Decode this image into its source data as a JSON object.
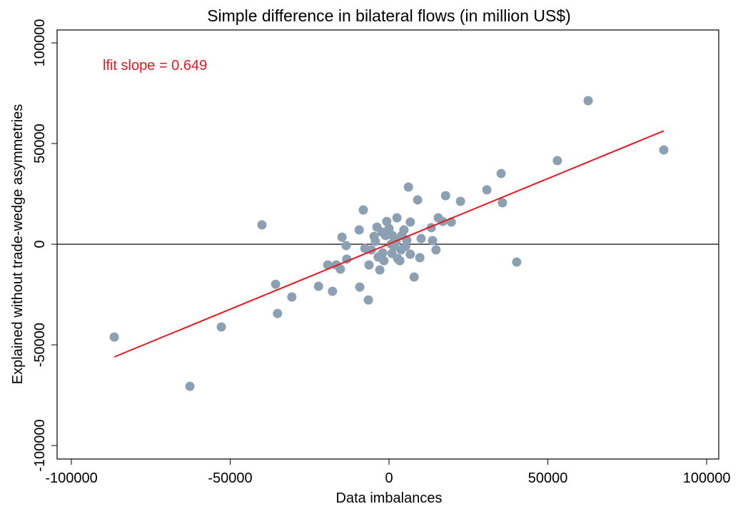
{
  "chart_data": {
    "type": "scatter",
    "title": "Simple difference in bilateral flows (in million US$)",
    "x_label": "Data imbalances",
    "y_label": "Explained without trade-wedge asymmetries",
    "annotation": "lfit slope = 0.649",
    "xlim": [
      -104500,
      103800
    ],
    "ylim": [
      -106700,
      106400
    ],
    "xticks": [
      -100000,
      -50000,
      0,
      50000,
      100000
    ],
    "yticks": [
      -100000,
      -50000,
      0,
      50000,
      100000
    ],
    "reference_line_y": 0,
    "fit_line": {
      "color": "#e8171f",
      "x": [
        -86500,
        86500
      ],
      "y": [
        -56000,
        56300
      ]
    },
    "series": [
      {
        "color": "#8ca0b3",
        "x": [
          -86500,
          -62700,
          -52800,
          -40000,
          -35700,
          -35100,
          -30600,
          -22200,
          -19300,
          -17800,
          -16600,
          -15300,
          -14800,
          -13500,
          -13300,
          -9400,
          -9200,
          -8100,
          -7600,
          -6500,
          -6300,
          -4700,
          -3800,
          -2900,
          -2000,
          -1100,
          0,
          700,
          1600,
          2500,
          3400,
          4700,
          6100,
          6700,
          6700,
          7900,
          9000,
          9700,
          10100,
          13300,
          13700,
          14800,
          15500,
          16900,
          17800,
          19600,
          22500,
          30800,
          35300,
          35700,
          40200,
          53000,
          62700,
          86500,
          -5600,
          -3400,
          -1600,
          1100,
          2200,
          3800,
          5200,
          -700,
          -2200,
          -4300,
          900,
          2700,
          4000,
          5600
        ],
        "values": [
          -46100,
          -70600,
          -41100,
          9600,
          -19900,
          -34400,
          -26200,
          -20900,
          -10300,
          -23400,
          -10300,
          -12400,
          3500,
          -700,
          -7400,
          7100,
          -21300,
          17000,
          -2100,
          -27700,
          -10300,
          3900,
          8500,
          -12800,
          -4300,
          4300,
          7800,
          0,
          -1100,
          13100,
          -8200,
          7100,
          28400,
          11000,
          -5000,
          -16300,
          22000,
          -6700,
          2800,
          8200,
          1800,
          -2800,
          13100,
          11300,
          24100,
          11000,
          21300,
          27000,
          35100,
          20600,
          -8900,
          41500,
          71300,
          46800,
          -2800,
          -6400,
          -8200,
          4300,
          1400,
          -2800,
          -1100,
          11300,
          6000,
          1400,
          -4600,
          -7100,
          4300,
          2100
        ]
      }
    ]
  }
}
